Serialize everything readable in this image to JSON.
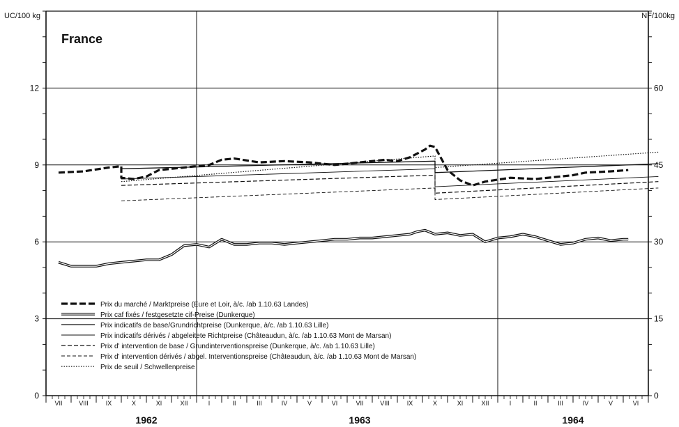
{
  "chart_data": {
    "type": "line",
    "title": "France",
    "ylabel_left": "UC/100 kg",
    "ylabel_right": "NF/100kg",
    "ylim_left": [
      0,
      15
    ],
    "ylim_right": [
      0,
      75
    ],
    "left_ticks": [
      "0",
      "3",
      "6",
      "9",
      "12"
    ],
    "right_ticks": [
      "0",
      "15",
      "30",
      "45",
      "60"
    ],
    "grid": true,
    "legend_position": "lower-left",
    "months": [
      "VII",
      "VIII",
      "IX",
      "X",
      "XI",
      "XII",
      "I",
      "II",
      "III",
      "IV",
      "V",
      "VI",
      "VII",
      "VIII",
      "IX",
      "X",
      "XI",
      "XII",
      "I",
      "II",
      "III",
      "IV",
      "V",
      "VI"
    ],
    "years": [
      {
        "label": "1962",
        "center_month_index": 3.5
      },
      {
        "label": "1963",
        "center_month_index": 12
      },
      {
        "label": "1964",
        "center_month_index": 20.5
      }
    ],
    "x_unit": "month index from VII 1962 (0) to VI 1964 (23)",
    "series": [
      {
        "name": "Prix du marché / Marktpreise (Eure et Loir, à/c. /ab 1.10.63 Landes)",
        "style": "heavy-dash",
        "x": [
          0,
          1,
          2,
          2.5,
          2.5,
          3,
          3.5,
          4,
          5,
          6,
          6.5,
          7,
          8,
          9,
          10,
          11,
          11.5,
          12,
          13,
          13.5,
          14,
          14.6,
          14.8,
          15,
          15.5,
          16,
          16.5,
          17,
          18,
          19,
          20,
          20.5,
          21,
          22,
          22.7
        ],
        "y": [
          8.7,
          8.75,
          8.9,
          8.95,
          8.5,
          8.45,
          8.55,
          8.8,
          8.9,
          9.0,
          9.2,
          9.25,
          9.1,
          9.15,
          9.1,
          9.0,
          9.05,
          9.1,
          9.2,
          9.15,
          9.3,
          9.6,
          9.75,
          9.7,
          8.8,
          8.4,
          8.2,
          8.35,
          8.5,
          8.45,
          8.55,
          8.6,
          8.7,
          8.75,
          8.8
        ]
      },
      {
        "name": "Prix caf fixés / festgesetzte cif-Preise (Dunkerque)",
        "style": "double",
        "x": [
          0,
          0.5,
          1,
          1.5,
          2,
          2.5,
          3,
          3.5,
          4,
          4.5,
          5,
          5.5,
          6,
          6.5,
          7,
          7.5,
          8,
          8.5,
          9,
          9.5,
          10,
          10.5,
          11,
          11.5,
          12,
          12.5,
          13,
          13.5,
          14,
          14.3,
          14.6,
          15,
          15.5,
          16,
          16.5,
          17,
          17.5,
          18,
          18.5,
          19,
          19.5,
          20,
          20.5,
          21,
          21.5,
          22,
          22.5,
          22.7
        ],
        "y": [
          5.2,
          5.05,
          5.05,
          5.05,
          5.15,
          5.2,
          5.25,
          5.3,
          5.3,
          5.5,
          5.85,
          5.9,
          5.8,
          6.1,
          5.9,
          5.9,
          5.95,
          5.95,
          5.9,
          5.95,
          6.0,
          6.05,
          6.1,
          6.1,
          6.15,
          6.15,
          6.2,
          6.25,
          6.3,
          6.4,
          6.45,
          6.3,
          6.35,
          6.25,
          6.3,
          6.0,
          6.15,
          6.2,
          6.3,
          6.2,
          6.05,
          5.9,
          5.95,
          6.1,
          6.15,
          6.05,
          6.1,
          6.1
        ]
      },
      {
        "name": "Prix indicatifs de base/Grundrichtpreise (Dunkerque, à/c. /ab 1.10.63 Lille)",
        "style": "solid",
        "x": [
          2.5,
          15,
          15,
          23.9
        ],
        "y": [
          8.85,
          9.15,
          8.7,
          9.05
        ]
      },
      {
        "name": "Prix indicatifs dérivés / abgeleitete Richtpreise (Châteaudun, à/c. /ab 1.10.63 Mont de Marsan)",
        "style": "solid-thin",
        "x": [
          2.5,
          15,
          15,
          23.9
        ],
        "y": [
          8.45,
          8.85,
          8.15,
          8.55
        ]
      },
      {
        "name": "Prix d' intervention de base / Grundinterventionspreise (Dunkerque, à/c. /ab 1.10.63 Lille)",
        "style": "dashed",
        "x": [
          2.5,
          15,
          15,
          23.9
        ],
        "y": [
          8.2,
          8.6,
          7.9,
          8.35
        ]
      },
      {
        "name": "Prix d' intervention dérivés / abgel. Interventionspreise (Châteaudun, à/c. /ab 1.10.63 Mont de Marsan)",
        "style": "dashed-thin",
        "x": [
          2.5,
          15,
          15,
          23.9
        ],
        "y": [
          7.6,
          8.1,
          7.65,
          8.1
        ]
      },
      {
        "name": "Prix de seuil / Schwellenpreise",
        "style": "dotted",
        "x": [
          2.5,
          15,
          15,
          23.9
        ],
        "y": [
          8.35,
          9.35,
          8.9,
          9.5
        ]
      }
    ]
  }
}
